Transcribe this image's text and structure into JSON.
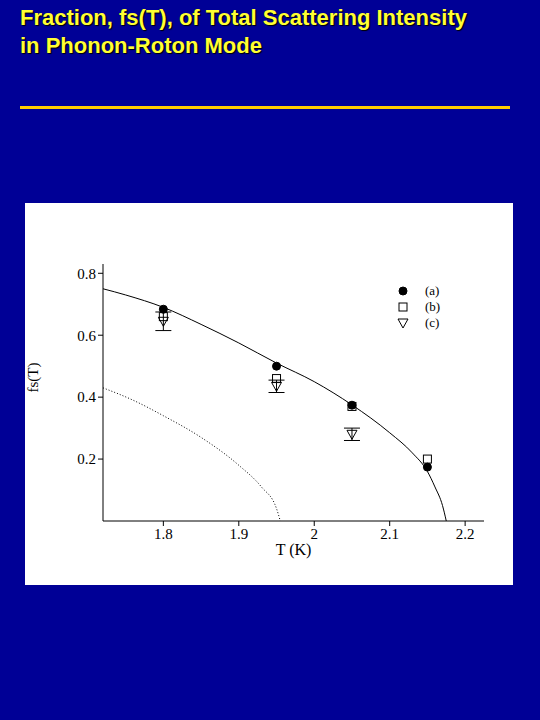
{
  "chart_data": {
    "type": "scatter",
    "title": "Fraction, fs(T), of Total Scattering Intensity in Phonon-Roton Mode",
    "x_label": "T (K)",
    "y_label": "fs(T)",
    "xlim": [
      1.72,
      2.225
    ],
    "ylim": [
      0,
      0.83
    ],
    "xticks": [
      1.8,
      1.9,
      2,
      2.1,
      2.2
    ],
    "yticks": [
      0.2,
      0.4,
      0.6,
      0.8
    ],
    "legend": "upper right",
    "series": [
      {
        "name": "(a)",
        "type": "scatter",
        "marker": "circle",
        "color": "#000000",
        "x": [
          1.8,
          1.95,
          2.05,
          2.15
        ],
        "values": [
          0.684,
          0.5,
          0.374,
          0.174
        ]
      },
      {
        "name": "(b)",
        "type": "scatter",
        "marker": "square_open",
        "color": "#000000",
        "x": [
          1.8,
          1.95,
          2.05,
          2.15
        ],
        "values": [
          0.66,
          0.46,
          0.37,
          0.2
        ]
      },
      {
        "name": "(c)",
        "type": "scatter",
        "marker": "triangle_down_open",
        "color": "#000000",
        "x": [
          1.8,
          1.95,
          2.05,
          2.15
        ],
        "values": [
          0.645,
          0.435,
          0.28,
          null
        ],
        "errors": [
          0.03,
          0.02,
          0.02,
          null
        ]
      },
      {
        "type": "line",
        "line_style": "solid",
        "color": "#000000",
        "x": [
          1.72,
          1.75,
          1.8,
          1.85,
          1.9,
          1.95,
          2.0,
          2.05,
          2.1,
          2.13,
          2.15,
          2.16,
          2.17,
          2.175
        ],
        "values": [
          0.75,
          0.73,
          0.69,
          0.635,
          0.575,
          0.51,
          0.45,
          0.375,
          0.285,
          0.22,
          0.16,
          0.11,
          0.05,
          0.0
        ]
      },
      {
        "type": "line",
        "line_style": "dotted",
        "color": "#000000",
        "x": [
          1.72,
          1.76,
          1.8,
          1.85,
          1.9,
          1.93,
          1.95,
          1.955
        ],
        "values": [
          0.43,
          0.39,
          0.34,
          0.27,
          0.18,
          0.11,
          0.04,
          0.0
        ]
      }
    ]
  }
}
